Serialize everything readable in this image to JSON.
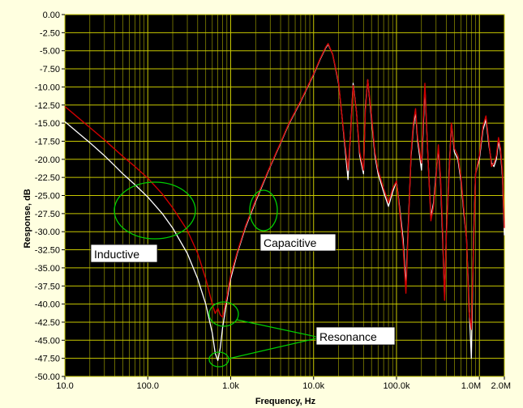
{
  "chart_data": {
    "type": "line",
    "xlabel": "Frequency, Hz",
    "ylabel": "Response, dB",
    "xscale": "log",
    "xlim": [
      10,
      2000000
    ],
    "ylim": [
      -50,
      0
    ],
    "grid": true,
    "colors": {
      "background": "#ffffe0",
      "plot_bg": "#000000",
      "grid_major": "#c8c800",
      "grid_minor": "#6e6e00",
      "series_white": "#ffffff",
      "series_red": "#d00000",
      "annotation": "#00d000"
    },
    "y_ticks": [
      "0.00",
      "-2.50",
      "-5.00",
      "-7.50",
      "-10.00",
      "-12.50",
      "-15.00",
      "-17.50",
      "-20.00",
      "-22.50",
      "-25.00",
      "-27.50",
      "-30.00",
      "-32.50",
      "-35.00",
      "-37.50",
      "-40.00",
      "-42.50",
      "-45.00",
      "-47.50",
      "-50.00"
    ],
    "x_ticks": [
      {
        "value": 10,
        "label": "10.0"
      },
      {
        "value": 100,
        "label": "100.0"
      },
      {
        "value": 1000,
        "label": "1.0k"
      },
      {
        "value": 10000,
        "label": "10.0k"
      },
      {
        "value": 100000,
        "label": "100.0k"
      },
      {
        "value": 1000000,
        "label": "1.0M"
      },
      {
        "value": 2000000,
        "label": "2.0M"
      }
    ],
    "series": [
      {
        "color": "#ffffff",
        "x": [
          10,
          15,
          20,
          30,
          40,
          50,
          70,
          100,
          150,
          200,
          300,
          400,
          500,
          600,
          650,
          700,
          750,
          800,
          900,
          1000,
          1200,
          1500,
          2000,
          3000,
          4000,
          5000,
          7000,
          10000,
          12000,
          14000,
          15000,
          17000,
          20000,
          22000,
          24000,
          26000,
          28000,
          30000,
          33000,
          36000,
          40000,
          42000,
          45000,
          50000,
          55000,
          60000,
          70000,
          80000,
          90000,
          100000,
          110000,
          120000,
          130000,
          140000,
          150000,
          160000,
          170000,
          180000,
          200000,
          210000,
          220000,
          240000,
          260000,
          280000,
          300000,
          320000,
          340000,
          360000,
          380000,
          400000,
          430000,
          460000,
          500000,
          550000,
          600000,
          650000,
          700000,
          750000,
          800000,
          850000,
          900000,
          1000000,
          1100000,
          1200000,
          1300000,
          1400000,
          1500000,
          1600000,
          1700000,
          1800000,
          1900000,
          2000000
        ],
        "y": [
          -14.8,
          -16.5,
          -17.7,
          -19.5,
          -20.9,
          -22.0,
          -23.5,
          -25.2,
          -27.5,
          -29.5,
          -33.0,
          -36.5,
          -40.0,
          -44.0,
          -46.8,
          -47.8,
          -46.0,
          -43.2,
          -39.5,
          -36.5,
          -33.0,
          -29.5,
          -25.8,
          -21.0,
          -17.8,
          -15.2,
          -12.0,
          -8.3,
          -6.2,
          -4.6,
          -4.1,
          -5.5,
          -9.5,
          -14.0,
          -18.5,
          -22.8,
          -16.0,
          -9.5,
          -13.5,
          -19.5,
          -22.0,
          -13.0,
          -9.0,
          -14.5,
          -19.5,
          -22.0,
          -24.5,
          -26.5,
          -24.5,
          -23.0,
          -27.0,
          -31.0,
          -37.5,
          -28.0,
          -19.5,
          -15.5,
          -13.5,
          -17.5,
          -21.5,
          -16.0,
          -10.0,
          -20.0,
          -28.0,
          -26.0,
          -22.0,
          -18.5,
          -23.0,
          -31.0,
          -39.0,
          -30.0,
          -22.0,
          -15.0,
          -19.0,
          -20.0,
          -23.0,
          -27.5,
          -31.0,
          -40.0,
          -47.5,
          -31.0,
          -22.0,
          -20.0,
          -16.0,
          -14.5,
          -18.0,
          -20.5,
          -21.0,
          -20.0,
          -17.5,
          -19.0,
          -22.5,
          -30.5
        ]
      },
      {
        "color": "#d00000",
        "x": [
          10,
          15,
          20,
          30,
          40,
          50,
          70,
          100,
          150,
          200,
          300,
          400,
          500,
          600,
          650,
          700,
          750,
          800,
          900,
          1000,
          1200,
          1500,
          2000,
          3000,
          4000,
          5000,
          7000,
          10000,
          12000,
          14000,
          15000,
          17000,
          20000,
          22000,
          24000,
          26000,
          28000,
          30000,
          33000,
          36000,
          40000,
          42000,
          45000,
          50000,
          55000,
          60000,
          70000,
          80000,
          90000,
          100000,
          110000,
          120000,
          130000,
          140000,
          150000,
          160000,
          170000,
          180000,
          200000,
          210000,
          220000,
          240000,
          260000,
          280000,
          300000,
          320000,
          340000,
          360000,
          380000,
          400000,
          430000,
          460000,
          500000,
          550000,
          600000,
          650000,
          700000,
          750000,
          800000,
          850000,
          900000,
          1000000,
          1100000,
          1200000,
          1300000,
          1400000,
          1500000,
          1600000,
          1700000,
          1800000,
          1900000,
          2000000
        ],
        "y": [
          -12.7,
          -14.4,
          -15.6,
          -17.3,
          -18.6,
          -19.6,
          -21.0,
          -22.6,
          -24.8,
          -26.7,
          -29.8,
          -33.0,
          -36.5,
          -40.0,
          -41.3,
          -40.6,
          -41.5,
          -41.8,
          -39.0,
          -36.0,
          -32.8,
          -29.3,
          -25.6,
          -20.9,
          -17.7,
          -15.1,
          -11.9,
          -8.2,
          -6.1,
          -4.5,
          -4.0,
          -5.5,
          -9.3,
          -14.0,
          -18.0,
          -21.5,
          -16.3,
          -9.8,
          -13.5,
          -19.0,
          -21.5,
          -13.5,
          -9.0,
          -14.0,
          -19.0,
          -21.5,
          -24.0,
          -26.0,
          -24.0,
          -23.0,
          -27.5,
          -32.0,
          -38.5,
          -28.5,
          -19.0,
          -15.0,
          -13.0,
          -17.0,
          -20.5,
          -15.0,
          -9.5,
          -20.0,
          -28.5,
          -26.5,
          -22.5,
          -18.0,
          -22.5,
          -30.0,
          -39.5,
          -30.5,
          -22.5,
          -15.0,
          -18.5,
          -19.5,
          -22.5,
          -27.0,
          -31.0,
          -41.0,
          -43.5,
          -32.0,
          -22.0,
          -19.5,
          -15.5,
          -14.0,
          -17.5,
          -21.0,
          -20.5,
          -19.5,
          -17.0,
          -18.5,
          -22.0,
          -29.5
        ]
      }
    ],
    "annotations": [
      {
        "label": "Inductive"
      },
      {
        "label": "Capacitive"
      },
      {
        "label": "Resonance"
      }
    ]
  }
}
